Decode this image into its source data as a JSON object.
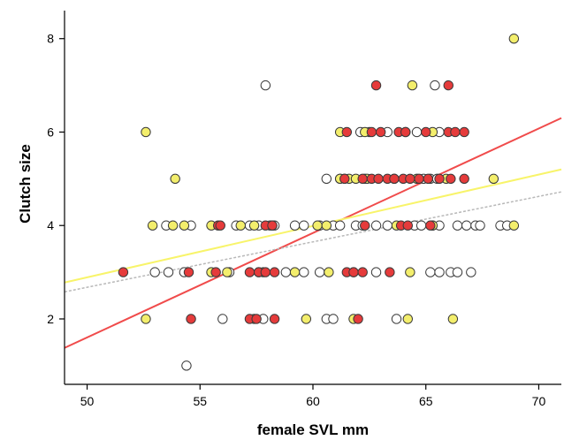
{
  "chart_data": {
    "type": "scatter",
    "xlabel": "female SVL  mm",
    "ylabel": "Clutch size",
    "xlim": [
      49,
      71
    ],
    "ylim": [
      0.6,
      8.6
    ],
    "xticks": [
      50,
      55,
      60,
      65,
      70
    ],
    "yticks": [
      2,
      4,
      6,
      8
    ],
    "grid": false,
    "legend": "none",
    "colors": {
      "white": "#ffffff",
      "yellow": "#f3ee6c",
      "red": "#e53b3b",
      "red_line": "#f04b4b",
      "yellow_line": "#f8f46a",
      "gray_line": "#b8b8b8",
      "marker_edge": "#3a3a3a"
    },
    "series": [
      {
        "color_key": "white",
        "points": [
          [
            54.4,
            1
          ],
          [
            56,
            2
          ],
          [
            57.8,
            2
          ],
          [
            60.6,
            2
          ],
          [
            60.9,
            2
          ],
          [
            63.7,
            2
          ],
          [
            53,
            3
          ],
          [
            53.6,
            3
          ],
          [
            54.3,
            3
          ],
          [
            56.3,
            3
          ],
          [
            57.6,
            3
          ],
          [
            58.8,
            3
          ],
          [
            59.6,
            3
          ],
          [
            60.3,
            3
          ],
          [
            61.8,
            3
          ],
          [
            62.8,
            3
          ],
          [
            65.2,
            3
          ],
          [
            65.6,
            3
          ],
          [
            66.1,
            3
          ],
          [
            66.4,
            3
          ],
          [
            67,
            3
          ],
          [
            53.5,
            4
          ],
          [
            54.6,
            4
          ],
          [
            56.6,
            4
          ],
          [
            57.2,
            4
          ],
          [
            57.6,
            4
          ],
          [
            58.1,
            4
          ],
          [
            58.3,
            4
          ],
          [
            59.2,
            4
          ],
          [
            59.6,
            4
          ],
          [
            60.3,
            4
          ],
          [
            60.9,
            4
          ],
          [
            61.2,
            4
          ],
          [
            61.9,
            4
          ],
          [
            62.2,
            4
          ],
          [
            62.8,
            4
          ],
          [
            63.3,
            4
          ],
          [
            64.5,
            4
          ],
          [
            64.8,
            4
          ],
          [
            65.3,
            4
          ],
          [
            65.6,
            4
          ],
          [
            66.4,
            4
          ],
          [
            66.8,
            4
          ],
          [
            67.2,
            4
          ],
          [
            67.4,
            4
          ],
          [
            68.3,
            4
          ],
          [
            68.6,
            4
          ],
          [
            60.6,
            5
          ],
          [
            61.2,
            5
          ],
          [
            61.4,
            5
          ],
          [
            62.3,
            5
          ],
          [
            63.6,
            5
          ],
          [
            64.9,
            5
          ],
          [
            65.2,
            5
          ],
          [
            65.5,
            5
          ],
          [
            62.1,
            6
          ],
          [
            62.5,
            6
          ],
          [
            63.3,
            6
          ],
          [
            64.6,
            6
          ],
          [
            65.6,
            6
          ],
          [
            57.9,
            7
          ],
          [
            65.4,
            7
          ]
        ]
      },
      {
        "color_key": "yellow",
        "points": [
          [
            52.6,
            2
          ],
          [
            57.4,
            2
          ],
          [
            59.7,
            2
          ],
          [
            61.8,
            2
          ],
          [
            64.2,
            2
          ],
          [
            66.2,
            2
          ],
          [
            55.5,
            3
          ],
          [
            56.2,
            3
          ],
          [
            57.8,
            3
          ],
          [
            59.2,
            3
          ],
          [
            60.7,
            3
          ],
          [
            64.3,
            3
          ],
          [
            52.9,
            4
          ],
          [
            53.8,
            4
          ],
          [
            54.3,
            4
          ],
          [
            55.5,
            4
          ],
          [
            56.8,
            4
          ],
          [
            57.4,
            4
          ],
          [
            58.2,
            4
          ],
          [
            60.2,
            4
          ],
          [
            60.6,
            4
          ],
          [
            63.7,
            4
          ],
          [
            65.3,
            4
          ],
          [
            68.9,
            4
          ],
          [
            61.2,
            5
          ],
          [
            61.6,
            5
          ],
          [
            61.9,
            5
          ],
          [
            62.4,
            5
          ],
          [
            64.6,
            5
          ],
          [
            65.9,
            5
          ],
          [
            68,
            5
          ],
          [
            52.6,
            6
          ],
          [
            61.2,
            6
          ],
          [
            62.3,
            6
          ],
          [
            64.1,
            6
          ],
          [
            65.3,
            6
          ],
          [
            64.4,
            7
          ],
          [
            53.9,
            5
          ],
          [
            68.9,
            8
          ]
        ]
      },
      {
        "color_key": "red",
        "points": [
          [
            57.2,
            2
          ],
          [
            57.5,
            2
          ],
          [
            58.3,
            2
          ],
          [
            62,
            2
          ],
          [
            54.6,
            2
          ],
          [
            51.6,
            3
          ],
          [
            54.5,
            3
          ],
          [
            55.7,
            3
          ],
          [
            57.2,
            3
          ],
          [
            57.6,
            3
          ],
          [
            57.9,
            3
          ],
          [
            58.3,
            3
          ],
          [
            61.5,
            3
          ],
          [
            61.8,
            3
          ],
          [
            62.2,
            3
          ],
          [
            63.4,
            3
          ],
          [
            55.8,
            4
          ],
          [
            57.9,
            4
          ],
          [
            58.2,
            4
          ],
          [
            62.3,
            4
          ],
          [
            63.9,
            4
          ],
          [
            64.2,
            4
          ],
          [
            65.2,
            4
          ],
          [
            55.9,
            4
          ],
          [
            61.4,
            5
          ],
          [
            62.2,
            5
          ],
          [
            62.6,
            5
          ],
          [
            62.9,
            5
          ],
          [
            63.3,
            5
          ],
          [
            63.6,
            5
          ],
          [
            64,
            5
          ],
          [
            64.3,
            5
          ],
          [
            64.7,
            5
          ],
          [
            65.1,
            5
          ],
          [
            65.6,
            5
          ],
          [
            66.1,
            5
          ],
          [
            66.7,
            5
          ],
          [
            61.5,
            6
          ],
          [
            62.6,
            6
          ],
          [
            63,
            6
          ],
          [
            63.8,
            6
          ],
          [
            64.1,
            6
          ],
          [
            65,
            6
          ],
          [
            66,
            6
          ],
          [
            66.3,
            6
          ],
          [
            66.7,
            6
          ],
          [
            62.8,
            7
          ],
          [
            66,
            7
          ]
        ]
      }
    ],
    "trend_lines": [
      {
        "color_key": "red_line",
        "dash": false,
        "x": [
          49,
          71
        ],
        "y": [
          1.38,
          6.3
        ]
      },
      {
        "color_key": "yellow_line",
        "dash": false,
        "x": [
          49,
          71
        ],
        "y": [
          2.78,
          5.2
        ]
      },
      {
        "color_key": "gray_line",
        "dash": true,
        "x": [
          49,
          71
        ],
        "y": [
          2.58,
          4.72
        ]
      }
    ]
  }
}
